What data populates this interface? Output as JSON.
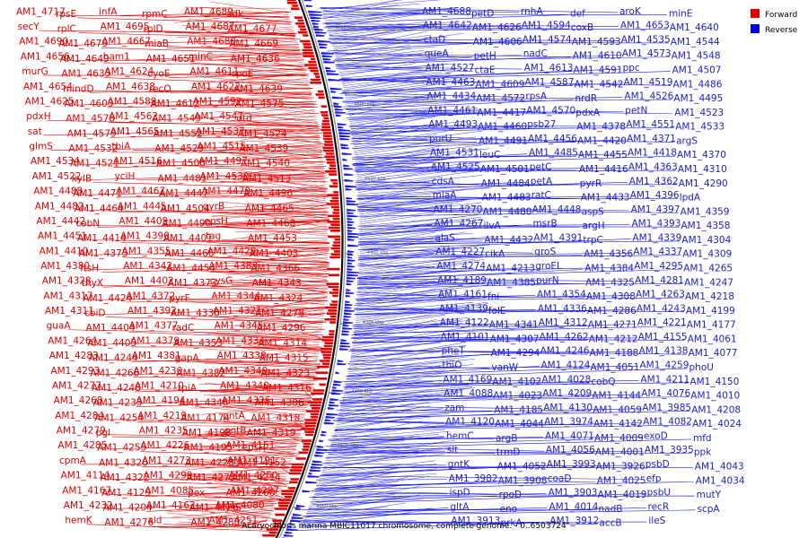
{
  "caption": "Acaryochloris marina MBIC11017 chromosome, complete genome. - 0..6503724",
  "legend": [
    {
      "label": "Forward",
      "color": "#e00000"
    },
    {
      "label": "Reverse",
      "color": "#0000e0"
    }
  ],
  "colors": {
    "forward": "#e00000",
    "reverse": "#1a1ae6",
    "label_blue": "#2020c8"
  },
  "ticks": [
    "4700 kbp",
    "4600 kbp",
    "4500 kbp",
    "4400 kbp",
    "4300 kbp",
    "4200 kbp",
    "4100 kbp",
    "4000 kbp"
  ],
  "forward_labels": [
    "AM1_4717",
    "rpsE",
    "infA",
    "rpmC",
    "AM1_4689",
    "adk",
    "secY",
    "rplC",
    "AM1_4695",
    "rplD",
    "AM1_4687",
    "AM1_4677",
    "AM1_4690",
    "AM1_4679",
    "AM1_4667",
    "miaB",
    "AM1_4680",
    "AM1_4669",
    "AM1_4656",
    "AM1_4649",
    "ham1",
    "AM1_4651",
    "minC",
    "AM1_4636",
    "murG",
    "AM1_4635",
    "AM1_4624",
    "cyoE",
    "AM1_4611",
    "rpoE",
    "AM1_4654",
    "mindD",
    "AM1_4638",
    "recO",
    "AM1_4622",
    "AM1_4639",
    "AM1_4625",
    "AM1_4603",
    "AM1_4589",
    "AM1_4612",
    "AM1_4592",
    "AM1_4575",
    "pdxH",
    "AM1_4578",
    "AM1_4562",
    "AM1_4549",
    "AM1_4547",
    "dtd",
    "sat",
    "AM1_4579",
    "AM1_4565",
    "AM1_4552",
    "AM1_4537",
    "AM1_4524",
    "glmS",
    "AM1_4532",
    "tbiA",
    "AM1_4529",
    "AM1_4515",
    "AM1_4539",
    "AM1_4534",
    "AM1_4521",
    "AM1_4516",
    "AM1_4500",
    "AM1_4497",
    "AM1_4540",
    "AM1_4522",
    "xylB",
    "yciH",
    "AM1_4481",
    "AM1_4530",
    "AM1_4513",
    "AM1_4488",
    "AM1_4471",
    "AM1_4467",
    "AM1_4447",
    "AM1_4479",
    "AM1_4496",
    "AM1_4482",
    "AM1_4464",
    "AM1_4445",
    "AM1_4504",
    "gyrB",
    "AM1_4465",
    "AM1_4442",
    "cobN",
    "AM1_4409",
    "AM1_4490",
    "epsH",
    "AM1_4468",
    "AM1_4451",
    "AM1_4414",
    "AM1_4390",
    "AM1_4401",
    "tag",
    "AM1_4453",
    "AM1_4410",
    "AM1_4375",
    "AM1_4355",
    "AM1_4466",
    "AM1_4429",
    "AM1_4403",
    "AM1_4380",
    "ftsH",
    "AM1_4342",
    "AM1_4454",
    "AM1_4383",
    "AM1_4366",
    "AM1_4328",
    "thyX",
    "AM1_4402",
    "AM1_4373",
    "cysG",
    "AM1_4343",
    "AM1_4317",
    "AM1_4424",
    "AM1_4372",
    "pyrF",
    "AM1_4344",
    "AM1_4324",
    "AM1_4311",
    "cbiD",
    "AM1_4392",
    "AM1_4330",
    "AM1_4321",
    "AM1_4278",
    "guaA",
    "AM1_4404",
    "AM1_4377",
    "radC",
    "AM1_4345",
    "AM1_4296",
    "AM1_4264",
    "AM1_4405",
    "AM1_4379",
    "AM1_4353",
    "AM1_4334",
    "AM1_4314",
    "AM1_4283",
    "AM1_4244",
    "AM1_4381",
    "gapA",
    "AM1_4338",
    "AM1_4315",
    "AM1_4293",
    "AM1_4266",
    "AM1_4230",
    "AM1_4382",
    "AM1_4349",
    "AM1_4323",
    "AM1_4277",
    "AM1_4248",
    "AM1_4210",
    "tpiA",
    "AM1_4340",
    "AM1_4316",
    "AM1_4268",
    "AM1_4233",
    "AM1_4194",
    "AM1_4346",
    "AM1_4326",
    "AM1_4306",
    "AM1_4284",
    "AM1_4254",
    "AM1_4219",
    "AM1_4174",
    "pntA",
    "AM1_4318",
    "AM1_4279",
    "pgl",
    "AM1_4235",
    "AM1_4198",
    "pntB",
    "AM1_4319",
    "AM1_4285",
    "AM1_4255",
    "AM1_4226",
    "AM1_4195",
    "AM1_4151",
    "epsH",
    "cpmA",
    "AM1_4320",
    "AM1_4273",
    "AM1_4228",
    "AM1_4191",
    "AM1_4152",
    "AM1_4114",
    "AM1_4322",
    "AM1_4299",
    "AM1_4275",
    "AM1_4250",
    "AM1_4214",
    "AM1_4167",
    "AM1_4129",
    "AM1_4085",
    "pex",
    "AM1_4287",
    "AM1_4260",
    "AM1_4232",
    "AM1_4204",
    "AM1_4162",
    "AM1_4126",
    "AM1_4080",
    "cysS",
    "hemK",
    "AM1_4276",
    "ald",
    "AM1_4280",
    "AM1_4251"
  ],
  "reverse_labels": [
    "AM1_4688",
    "petD",
    "rnhA",
    "def",
    "aroK",
    "minE",
    "AM1_4642",
    "AM1_4626",
    "AM1_4594",
    "coxB",
    "AM1_4653",
    "AM1_4640",
    "ctaD",
    "AM1_4606",
    "AM1_4574",
    "AM1_4593",
    "AM1_4535",
    "AM1_4544",
    "queA",
    "petH",
    "nadC",
    "AM1_4610",
    "AM1_4573",
    "AM1_4548",
    "AM1_4527",
    "ctaE",
    "AM1_4613",
    "AM1_4591",
    "ppc",
    "AM1_4507",
    "AM1_4463",
    "AM1_4609",
    "AM1_4587",
    "AM1_4542",
    "AM1_4519",
    "AM1_4486",
    "AM1_4434",
    "AM1_4572",
    "rpsA",
    "nrdR",
    "AM1_4526",
    "AM1_4495",
    "AM1_4461",
    "AM1_4417",
    "AM1_4570",
    "pdxA",
    "petN",
    "AM1_4523",
    "AM1_4493",
    "AM1_4460",
    "psb27",
    "AM1_4378",
    "AM1_4551",
    "AM1_4533",
    "purU",
    "AM1_4491",
    "AM1_4456",
    "AM1_4420",
    "AM1_4371",
    "argS",
    "AM1_4531",
    "leuC",
    "AM1_4485",
    "AM1_4455",
    "AM1_4418",
    "AM1_4370",
    "AM1_4525",
    "AM1_4501",
    "petC",
    "AM1_4416",
    "AM1_4363",
    "AM1_4310",
    "cdsA",
    "AM1_4484",
    "petA",
    "pyrR",
    "AM1_4362",
    "AM1_4290",
    "miaA",
    "AM1_4483",
    "ratC",
    "AM1_4433",
    "AM1_4396",
    "lpdA",
    "AM1_4270",
    "AM1_4480",
    "AM1_4448",
    "aspS",
    "AM1_4397",
    "AM1_4359",
    "AM1_4267",
    "ilvA",
    "msrB",
    "argH",
    "AM1_4393",
    "AM1_4358",
    "alaS",
    "AM1_4432",
    "AM1_4391",
    "trpC",
    "AM1_4339",
    "AM1_4304",
    "AM1_4227",
    "cikA",
    "groS",
    "AM1_4356",
    "AM1_4337",
    "AM1_4309",
    "AM1_4274",
    "AM1_4213",
    "groEL",
    "AM1_4384",
    "AM1_4295",
    "AM1_4265",
    "AM1_4189",
    "AM1_4385",
    "purN",
    "AM1_4325",
    "AM1_4281",
    "AM1_4247",
    "AM1_4161",
    "fni",
    "AM1_4354",
    "AM1_4308",
    "AM1_4263",
    "AM1_4218",
    "AM1_4139",
    "folE",
    "AM1_4336",
    "AM1_4286",
    "AM1_4243",
    "AM1_4199",
    "AM1_4122",
    "AM1_4341",
    "AM1_4312",
    "AM1_4271",
    "AM1_4221",
    "AM1_4177",
    "AM1_4101",
    "AM1_4307",
    "AM1_4262",
    "AM1_4212",
    "AM1_4155",
    "AM1_4061",
    "pheT",
    "AM1_4294",
    "AM1_4246",
    "AM1_4188",
    "AM1_4138",
    "AM1_4077",
    "thiO",
    "vanW",
    "AM1_4124",
    "AM1_4051",
    "AM1_4259",
    "phoU",
    "AM1_4169",
    "AM1_4102",
    "AM1_4028",
    "cobQ",
    "AM1_4211",
    "AM1_4150",
    "AM1_4088",
    "AM1_4023",
    "AM1_4209",
    "AM1_4144",
    "AM1_4076",
    "AM1_4010",
    "zam",
    "AM1_4185",
    "AM1_4130",
    "AM1_4059",
    "AM1_3985",
    "AM1_4208",
    "AM1_4120",
    "AM1_4044",
    "AM1_3974",
    "AM1_4142",
    "AM1_4082",
    "AM1_4024",
    "hemC",
    "argB",
    "AM1_4071",
    "AM1_4009",
    "exoD",
    "mfd",
    "slt",
    "trmD",
    "AM1_4056",
    "AM1_4001",
    "AM1_3935",
    "ppk",
    "gntK",
    "AM1_4052",
    "AM1_3993",
    "AM1_3926",
    "psbD",
    "AM1_4043",
    "AM1_3982",
    "AM1_3908",
    "coaD",
    "AM1_4025",
    "efp",
    "AM1_4034",
    "ispD",
    "rpoD",
    "AM1_3903",
    "AM1_4019",
    "psbU",
    "mutY",
    "gltA",
    "eno",
    "AM1_4014",
    "nadB",
    "recR",
    "scpA",
    "AM1_3913",
    "prkA",
    "AM1_3912",
    "accB",
    "ileS"
  ]
}
